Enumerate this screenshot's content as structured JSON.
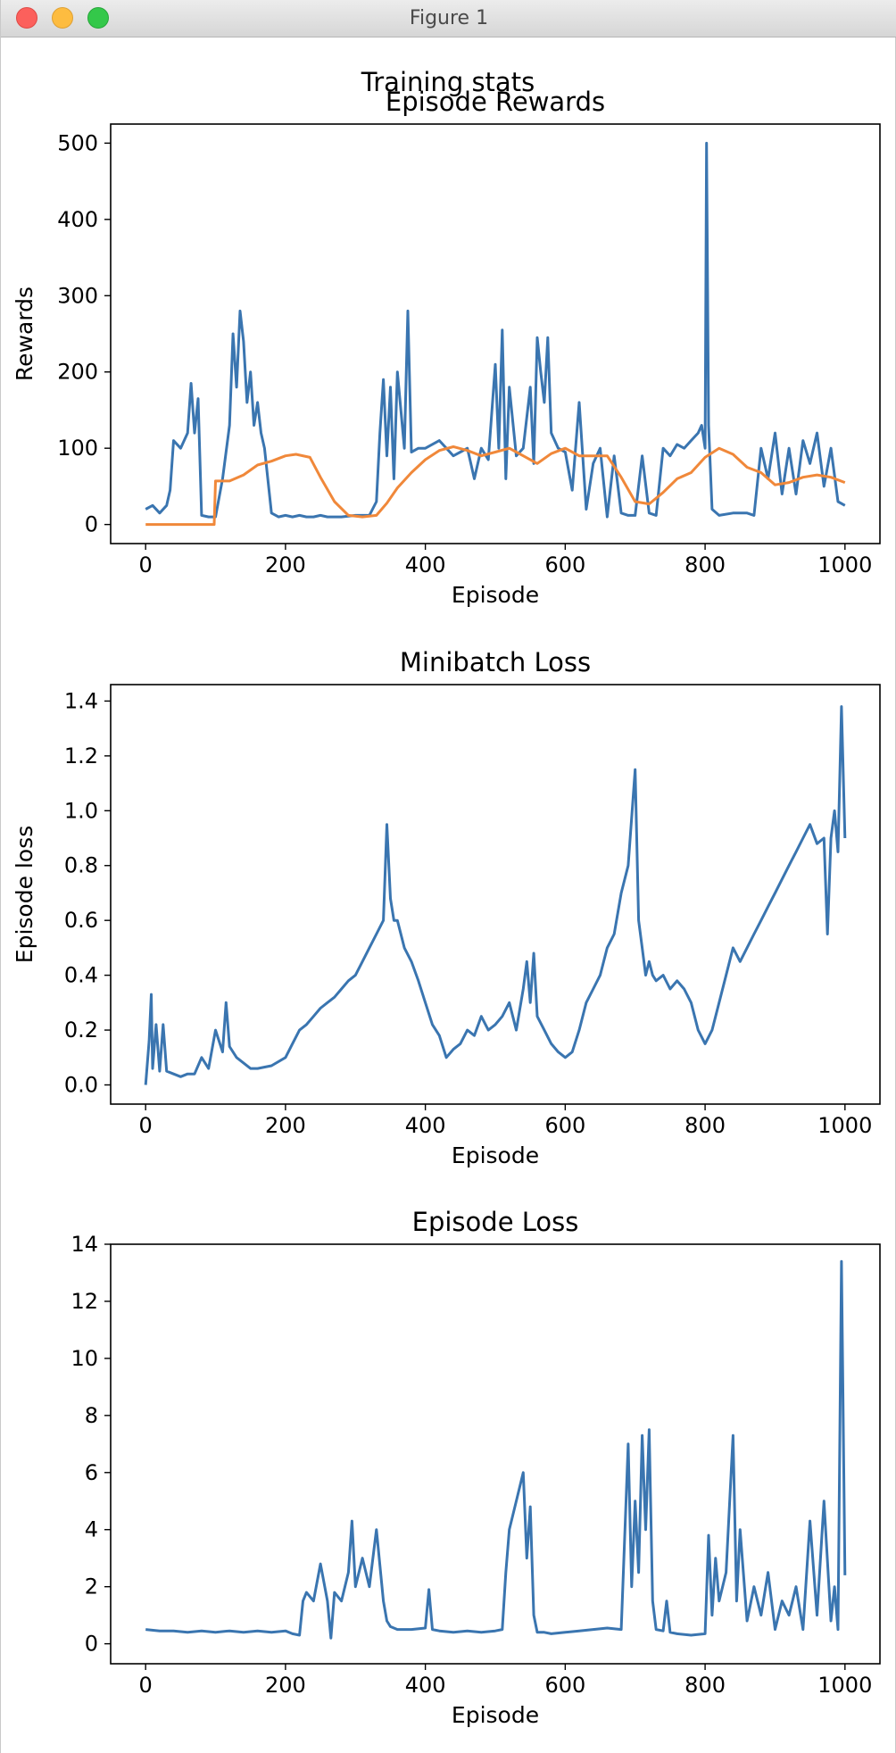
{
  "window": {
    "title": "Figure 1"
  },
  "figure": {
    "suptitle": "Training stats"
  },
  "colors": {
    "series_blue": "#3a75b0",
    "series_orange": "#f0883a"
  },
  "chart_data": [
    {
      "type": "line",
      "title": "Episode Rewards",
      "xlabel": "Episode",
      "ylabel": "Rewards",
      "xlim": [
        -50,
        1050
      ],
      "ylim": [
        -25,
        525
      ],
      "xticks": [
        0,
        200,
        400,
        600,
        800,
        1000
      ],
      "yticks": [
        0,
        100,
        200,
        300,
        400,
        500
      ],
      "ytick_labels": [
        "0",
        "100",
        "200",
        "300",
        "400",
        "500"
      ],
      "series": [
        {
          "color": "#3a75b0",
          "x": [
            0,
            10,
            20,
            30,
            35,
            40,
            50,
            60,
            65,
            70,
            75,
            80,
            90,
            100,
            110,
            120,
            125,
            130,
            135,
            140,
            145,
            150,
            155,
            160,
            165,
            170,
            180,
            190,
            200,
            210,
            220,
            230,
            240,
            250,
            260,
            280,
            300,
            320,
            330,
            335,
            340,
            345,
            350,
            355,
            360,
            370,
            375,
            380,
            390,
            400,
            420,
            440,
            450,
            460,
            470,
            480,
            490,
            500,
            505,
            510,
            515,
            520,
            530,
            540,
            550,
            555,
            560,
            565,
            570,
            575,
            580,
            590,
            600,
            610,
            620,
            630,
            640,
            650,
            660,
            670,
            680,
            690,
            700,
            710,
            720,
            730,
            740,
            750,
            760,
            770,
            780,
            790,
            795,
            800,
            802,
            805,
            810,
            820,
            840,
            860,
            870,
            880,
            890,
            900,
            910,
            920,
            930,
            940,
            950,
            960,
            970,
            980,
            990,
            1000
          ],
          "y": [
            20,
            25,
            15,
            25,
            45,
            110,
            100,
            120,
            185,
            120,
            165,
            12,
            10,
            10,
            60,
            130,
            250,
            180,
            280,
            240,
            160,
            200,
            130,
            160,
            120,
            100,
            15,
            10,
            12,
            10,
            12,
            10,
            10,
            12,
            10,
            10,
            12,
            12,
            30,
            120,
            190,
            90,
            180,
            60,
            200,
            100,
            280,
            95,
            100,
            100,
            110,
            90,
            95,
            100,
            60,
            100,
            85,
            210,
            100,
            255,
            60,
            180,
            90,
            100,
            180,
            80,
            245,
            200,
            160,
            245,
            120,
            100,
            95,
            45,
            160,
            20,
            80,
            100,
            10,
            90,
            15,
            12,
            12,
            90,
            15,
            12,
            100,
            90,
            105,
            100,
            110,
            120,
            130,
            100,
            500,
            130,
            20,
            12,
            15,
            15,
            12,
            100,
            60,
            120,
            40,
            100,
            40,
            110,
            80,
            120,
            50,
            100,
            30,
            25
          ]
        },
        {
          "color": "#f0883a",
          "x": [
            0,
            98,
            100,
            120,
            140,
            160,
            180,
            200,
            215,
            235,
            250,
            270,
            290,
            310,
            330,
            345,
            360,
            380,
            400,
            420,
            440,
            460,
            480,
            500,
            520,
            540,
            560,
            580,
            600,
            620,
            640,
            660,
            680,
            700,
            720,
            740,
            760,
            780,
            800,
            820,
            840,
            860,
            880,
            900,
            920,
            940,
            960,
            980,
            1000
          ],
          "y": [
            0,
            0,
            57,
            57,
            65,
            78,
            83,
            90,
            92,
            88,
            62,
            30,
            12,
            10,
            12,
            28,
            48,
            68,
            85,
            97,
            102,
            97,
            90,
            95,
            100,
            90,
            80,
            93,
            100,
            90,
            90,
            90,
            62,
            30,
            27,
            42,
            60,
            68,
            88,
            100,
            92,
            75,
            68,
            52,
            55,
            62,
            65,
            62,
            55
          ]
        }
      ]
    },
    {
      "type": "line",
      "title": "Minibatch Loss",
      "xlabel": "Episode",
      "ylabel": "Episode loss",
      "xlim": [
        -50,
        1050
      ],
      "ylim": [
        -0.07,
        1.46
      ],
      "xticks": [
        0,
        200,
        400,
        600,
        800,
        1000
      ],
      "yticks": [
        0,
        0.2,
        0.4,
        0.6,
        0.8,
        1.0,
        1.2,
        1.4
      ],
      "ytick_labels": [
        "0.0",
        "0.2",
        "0.4",
        "0.6",
        "0.8",
        "1.0",
        "1.2",
        "1.4"
      ],
      "series": [
        {
          "color": "#3a75b0",
          "x": [
            0,
            5,
            8,
            10,
            15,
            20,
            25,
            30,
            40,
            50,
            60,
            70,
            80,
            90,
            100,
            110,
            115,
            120,
            130,
            140,
            150,
            160,
            180,
            200,
            210,
            220,
            230,
            240,
            250,
            260,
            270,
            280,
            290,
            300,
            310,
            320,
            330,
            340,
            345,
            350,
            355,
            360,
            370,
            380,
            390,
            400,
            410,
            420,
            430,
            440,
            450,
            460,
            470,
            480,
            490,
            500,
            510,
            520,
            530,
            540,
            545,
            550,
            555,
            560,
            570,
            580,
            590,
            600,
            610,
            620,
            630,
            640,
            650,
            660,
            670,
            680,
            690,
            700,
            705,
            710,
            715,
            720,
            725,
            730,
            740,
            750,
            760,
            770,
            780,
            790,
            800,
            810,
            820,
            830,
            840,
            850,
            860,
            870,
            880,
            890,
            900,
            910,
            920,
            930,
            940,
            950,
            960,
            970,
            975,
            980,
            985,
            990,
            995,
            1000
          ],
          "y": [
            0,
            0.16,
            0.33,
            0.06,
            0.22,
            0.05,
            0.22,
            0.05,
            0.04,
            0.03,
            0.04,
            0.04,
            0.1,
            0.06,
            0.2,
            0.12,
            0.3,
            0.14,
            0.1,
            0.08,
            0.06,
            0.06,
            0.07,
            0.1,
            0.15,
            0.2,
            0.22,
            0.25,
            0.28,
            0.3,
            0.32,
            0.35,
            0.38,
            0.4,
            0.45,
            0.5,
            0.55,
            0.6,
            0.95,
            0.68,
            0.6,
            0.6,
            0.5,
            0.45,
            0.38,
            0.3,
            0.22,
            0.18,
            0.1,
            0.13,
            0.15,
            0.2,
            0.18,
            0.25,
            0.2,
            0.22,
            0.25,
            0.3,
            0.2,
            0.35,
            0.45,
            0.3,
            0.48,
            0.25,
            0.2,
            0.15,
            0.12,
            0.1,
            0.12,
            0.2,
            0.3,
            0.35,
            0.4,
            0.5,
            0.55,
            0.7,
            0.8,
            1.15,
            0.6,
            0.5,
            0.4,
            0.45,
            0.4,
            0.38,
            0.4,
            0.35,
            0.38,
            0.35,
            0.3,
            0.2,
            0.15,
            0.2,
            0.3,
            0.4,
            0.5,
            0.45,
            0.5,
            0.55,
            0.6,
            0.65,
            0.7,
            0.75,
            0.8,
            0.85,
            0.9,
            0.95,
            0.88,
            0.9,
            0.55,
            0.9,
            1.0,
            0.85,
            1.38,
            0.9
          ]
        }
      ]
    },
    {
      "type": "line",
      "title": "Episode Loss",
      "xlabel": "Episode",
      "ylabel": "",
      "xlim": [
        -50,
        1050
      ],
      "ylim": [
        -0.7,
        14.0
      ],
      "xticks": [
        0,
        200,
        400,
        600,
        800,
        1000
      ],
      "yticks": [
        0,
        2,
        4,
        6,
        8,
        10,
        12,
        14
      ],
      "ytick_labels": [
        "0",
        "2",
        "4",
        "6",
        "8",
        "10",
        "12",
        "14"
      ],
      "series": [
        {
          "color": "#3a75b0",
          "x": [
            0,
            20,
            40,
            60,
            80,
            100,
            120,
            140,
            160,
            180,
            200,
            210,
            220,
            225,
            230,
            240,
            250,
            260,
            265,
            270,
            280,
            290,
            295,
            300,
            310,
            320,
            330,
            340,
            345,
            350,
            360,
            380,
            400,
            405,
            410,
            420,
            440,
            460,
            480,
            500,
            510,
            515,
            520,
            530,
            540,
            545,
            550,
            555,
            560,
            570,
            580,
            600,
            620,
            640,
            660,
            680,
            690,
            695,
            700,
            705,
            710,
            715,
            720,
            725,
            730,
            740,
            745,
            750,
            760,
            780,
            800,
            805,
            810,
            815,
            820,
            830,
            840,
            845,
            850,
            860,
            870,
            880,
            890,
            900,
            910,
            920,
            930,
            940,
            950,
            960,
            970,
            980,
            985,
            990,
            995,
            1000
          ],
          "y": [
            0.5,
            0.45,
            0.45,
            0.4,
            0.45,
            0.4,
            0.45,
            0.4,
            0.45,
            0.4,
            0.45,
            0.35,
            0.3,
            1.5,
            1.8,
            1.5,
            2.8,
            1.5,
            0.2,
            1.8,
            1.5,
            2.5,
            4.3,
            2.0,
            3.0,
            2.0,
            4.0,
            1.5,
            0.8,
            0.6,
            0.5,
            0.5,
            0.55,
            1.9,
            0.5,
            0.45,
            0.4,
            0.45,
            0.4,
            0.45,
            0.5,
            2.5,
            4.0,
            5.0,
            6.0,
            3.0,
            4.8,
            1.0,
            0.4,
            0.4,
            0.35,
            0.4,
            0.45,
            0.5,
            0.55,
            0.5,
            7.0,
            2.0,
            5.0,
            2.5,
            7.3,
            4.0,
            7.5,
            1.5,
            0.5,
            0.45,
            1.5,
            0.4,
            0.35,
            0.3,
            0.35,
            3.8,
            1.0,
            3.0,
            1.5,
            2.5,
            7.3,
            1.5,
            4.0,
            0.8,
            2.0,
            1.0,
            2.5,
            0.5,
            1.5,
            1.0,
            2.0,
            0.5,
            4.3,
            1.0,
            5.0,
            0.8,
            2.0,
            0.5,
            13.4,
            2.4
          ]
        }
      ]
    }
  ]
}
